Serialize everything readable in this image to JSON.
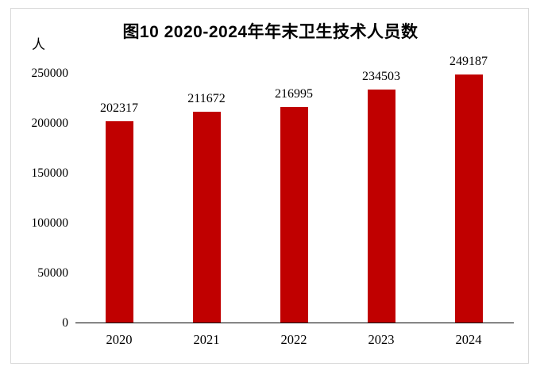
{
  "figure": {
    "title": "图10 2020-2024年年末卫生技术人员数",
    "unit_label": "人"
  },
  "chart_data": {
    "type": "bar",
    "title": "图10 2020-2024年年末卫生技术人员数",
    "categories": [
      "2020",
      "2021",
      "2022",
      "2023",
      "2024"
    ],
    "values": [
      202317,
      211672,
      216995,
      234503,
      249187
    ],
    "data_labels": [
      202317,
      211672,
      216995,
      234503,
      249187
    ],
    "xlabel": "",
    "ylabel": "人",
    "ylim": [
      0,
      250000
    ],
    "yticks": [
      0,
      50000,
      100000,
      150000,
      200000,
      250000
    ],
    "bar_color": "#c00000",
    "axis_color": "#000000",
    "frame_color": "#d9d9d9",
    "grid": false,
    "legend": "none"
  }
}
